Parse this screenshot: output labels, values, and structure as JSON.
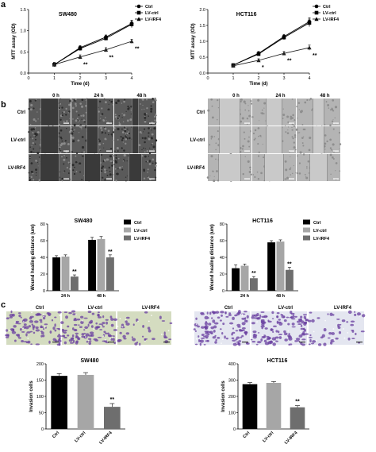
{
  "panel_letters": {
    "a": "a",
    "b": "b",
    "c": "c"
  },
  "micro": {
    "time_labels": [
      "0 h",
      "24 h",
      "48 h"
    ],
    "row_labels": [
      "Ctrl",
      "LV-ctrl",
      "LV-IRF4"
    ],
    "invasion_labels": [
      "Ctrl",
      "LV-ctrl",
      "LV-IRF4"
    ]
  },
  "colors": {
    "ctrl": "#000000",
    "lvctrl": "#a6a6a6",
    "lvirf4": "#6e6e6e",
    "sw480_scratch_bg": "#5a5a5a",
    "hct116_scratch_bg": "#b4b4b4",
    "sw480_invasion_bg": "#d4dcc0",
    "hct116_invasion_bg": "#e4e6f0",
    "stain": "#6a3fa0"
  },
  "chart_data": [
    {
      "id": "mtt-sw480",
      "type": "line",
      "title": "SW480",
      "xlabel": "Time (d)",
      "ylabel": "MTT assay (OD)",
      "x": [
        1,
        2,
        3,
        4
      ],
      "xticks": [
        "0",
        "1",
        "2",
        "3",
        "4"
      ],
      "yticks": [
        "0.0",
        "0.5",
        "1.0",
        "1.5"
      ],
      "xlim": [
        0,
        4
      ],
      "ylim": [
        0,
        1.5
      ],
      "legend": "top-left",
      "series": [
        {
          "name": "Ctrl",
          "values": [
            0.2,
            0.6,
            0.85,
            1.17
          ],
          "err": [
            0.05,
            0.05,
            0.05,
            0.08
          ],
          "marker": "circle"
        },
        {
          "name": "LV-ctrl",
          "values": [
            0.2,
            0.58,
            0.82,
            1.15
          ],
          "err": [
            0.05,
            0.05,
            0.05,
            0.08
          ],
          "marker": "square"
        },
        {
          "name": "LV-IRF4",
          "values": [
            0.2,
            0.38,
            0.55,
            0.75
          ],
          "err": [
            0.04,
            0.05,
            0.05,
            0.05
          ],
          "marker": "triangle"
        }
      ],
      "annotations": [
        {
          "x": 2,
          "text": "**"
        },
        {
          "x": 3,
          "text": "**"
        },
        {
          "x": 4,
          "text": "**"
        }
      ]
    },
    {
      "id": "mtt-hct116",
      "type": "line",
      "title": "HCT116",
      "xlabel": "Time (d)",
      "ylabel": "MTT assay (OD)",
      "x": [
        1,
        2,
        3,
        4
      ],
      "xticks": [
        "0",
        "1",
        "2",
        "3",
        "4"
      ],
      "yticks": [
        "0.0",
        "0.5",
        "1.0",
        "1.5",
        "2.0"
      ],
      "xlim": [
        0,
        4
      ],
      "ylim": [
        0,
        2.0
      ],
      "legend": "top-left",
      "series": [
        {
          "name": "Ctrl",
          "values": [
            0.25,
            0.62,
            1.15,
            1.62
          ],
          "err": [
            0.04,
            0.06,
            0.07,
            0.12
          ],
          "marker": "circle"
        },
        {
          "name": "LV-ctrl",
          "values": [
            0.25,
            0.6,
            1.12,
            1.58
          ],
          "err": [
            0.04,
            0.06,
            0.07,
            0.12
          ],
          "marker": "square"
        },
        {
          "name": "LV-IRF4",
          "values": [
            0.23,
            0.4,
            0.62,
            0.8
          ],
          "err": [
            0.04,
            0.05,
            0.06,
            0.08
          ],
          "marker": "triangle"
        }
      ],
      "annotations": [
        {
          "x": 2,
          "text": "*"
        },
        {
          "x": 3,
          "text": "**"
        },
        {
          "x": 4,
          "text": "**"
        }
      ]
    },
    {
      "id": "wound-sw480",
      "type": "bar",
      "title": "SW480",
      "xlabel": "",
      "ylabel": "Wound healing distance (um)",
      "categories": [
        "24 h",
        "48 h"
      ],
      "yticks": [
        "0",
        "20",
        "40",
        "60",
        "80"
      ],
      "ylim": [
        0,
        80
      ],
      "legend": "top-right",
      "series": [
        {
          "name": "Ctrl",
          "values": [
            40,
            61
          ],
          "err": [
            2,
            3
          ]
        },
        {
          "name": "LV-ctrl",
          "values": [
            41,
            62
          ],
          "err": [
            2,
            3
          ]
        },
        {
          "name": "LV-IRF4",
          "values": [
            17,
            40
          ],
          "err": [
            2,
            3
          ]
        }
      ],
      "annotations": [
        {
          "category": 0,
          "series": 2,
          "text": "**"
        },
        {
          "category": 1,
          "series": 2,
          "text": "**"
        }
      ]
    },
    {
      "id": "wound-hct116",
      "type": "bar",
      "title": "HCT116",
      "xlabel": "",
      "ylabel": "Wound healing distance (um)",
      "categories": [
        "24 h",
        "48 h"
      ],
      "yticks": [
        "0",
        "20",
        "40",
        "60",
        "80"
      ],
      "ylim": [
        0,
        80
      ],
      "legend": "top-right",
      "series": [
        {
          "name": "Ctrl",
          "values": [
            27,
            58
          ],
          "err": [
            4,
            2
          ]
        },
        {
          "name": "LV-ctrl",
          "values": [
            30,
            59
          ],
          "err": [
            2,
            2
          ]
        },
        {
          "name": "LV-IRF4",
          "values": [
            15,
            25
          ],
          "err": [
            2,
            3
          ]
        }
      ],
      "annotations": [
        {
          "category": 0,
          "series": 2,
          "text": "**"
        },
        {
          "category": 1,
          "series": 2,
          "text": "**"
        }
      ]
    },
    {
      "id": "invasion-sw480",
      "type": "bar",
      "title": "SW480",
      "xlabel": "",
      "ylabel": "Invasion cells",
      "categories": [
        "Ctrl",
        "LV-ctrl",
        "LV-IRF4"
      ],
      "yticks": [
        "0",
        "50",
        "100",
        "150",
        "200"
      ],
      "ylim": [
        0,
        200
      ],
      "values": [
        163,
        166,
        68
      ],
      "err": [
        7,
        7,
        10
      ],
      "annotations": [
        {
          "category": 2,
          "text": "**"
        }
      ]
    },
    {
      "id": "invasion-hct116",
      "type": "bar",
      "title": "HCT116",
      "xlabel": "",
      "ylabel": "Invasion cells",
      "categories": [
        "Ctrl",
        "LV-ctrl",
        "LV-IRF4"
      ],
      "yticks": [
        "0",
        "100",
        "200",
        "300",
        "400"
      ],
      "ylim": [
        0,
        400
      ],
      "values": [
        275,
        283,
        133
      ],
      "err": [
        10,
        8,
        10
      ],
      "annotations": [
        {
          "category": 2,
          "text": "**"
        }
      ]
    }
  ]
}
